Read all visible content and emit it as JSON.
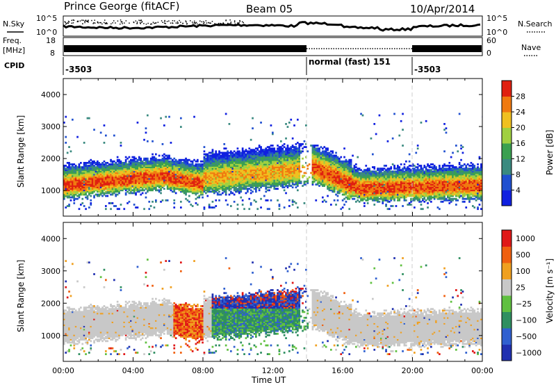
{
  "header": {
    "station": "Prince George (fitACF)",
    "beam": "Beam 05",
    "date": "10/Apr/2014"
  },
  "labels": {
    "nsky": "N.Sky",
    "nsearch": "N.Search",
    "freq_top": "Freq.",
    "freq_unit": "[MHz]",
    "nave": "Nave",
    "cpid": "CPID",
    "nsky_top": "10^5",
    "nsky_bottom": "10^0",
    "nsearch_top": "10^5",
    "nsearch_bottom": "10^0",
    "freq_tick_top": "18",
    "freq_tick_bottom": "8",
    "nave_tick_top": "60",
    "nave_tick_bottom": "0",
    "cpid_left": "-3503",
    "cpid_mid": "normal (fast) 151",
    "cpid_right": "-3503",
    "slant_range_1": "Slant Range [km]",
    "slant_range_2": "Slant Range [km]",
    "xlabel": "Time UT",
    "power_label": "Power [dB]",
    "velocity_label": "Velocity [m s⁻¹]"
  },
  "colors": {
    "power_scale": [
      "#1020e0",
      "#2050d0",
      "#3a8a80",
      "#3aa050",
      "#a0d040",
      "#f0c020",
      "#f07a10",
      "#e02010"
    ],
    "velocity_scale": [
      "#2030b0",
      "#3060d0",
      "#2f8f60",
      "#60c040",
      "#c8c8c8",
      "#f0a020",
      "#f06010",
      "#e01818"
    ]
  },
  "chart_data": [
    {
      "type": "heatmap",
      "title": "",
      "parameter": "power",
      "ylabel": "Slant Range [km]",
      "ylim": [
        200,
        4500
      ],
      "yticks": [
        "1000",
        "2000",
        "3000",
        "4000"
      ],
      "xlabel": "Time UT",
      "xticks": [
        "00:00",
        "04:00",
        "08:00",
        "12:00",
        "16:00",
        "20:00",
        "00:00"
      ],
      "colorbar": {
        "label": "Power [dB]",
        "ticks": [
          "4",
          "8",
          "12",
          "16",
          "20",
          "24",
          "28"
        ]
      }
    },
    {
      "type": "heatmap",
      "title": "",
      "parameter": "velocity",
      "ylabel": "Slant Range [km]",
      "ylim": [
        200,
        4500
      ],
      "yticks": [
        "1000",
        "2000",
        "3000",
        "4000"
      ],
      "xlabel": "Time UT",
      "xticks": [
        "00:00",
        "04:00",
        "08:00",
        "12:00",
        "16:00",
        "20:00",
        "00:00"
      ],
      "colorbar": {
        "label": "Velocity [m s⁻¹]",
        "ticks": [
          "1000",
          "500",
          "100",
          "25",
          "−25",
          "−100",
          "−500",
          "−1000"
        ]
      }
    }
  ]
}
